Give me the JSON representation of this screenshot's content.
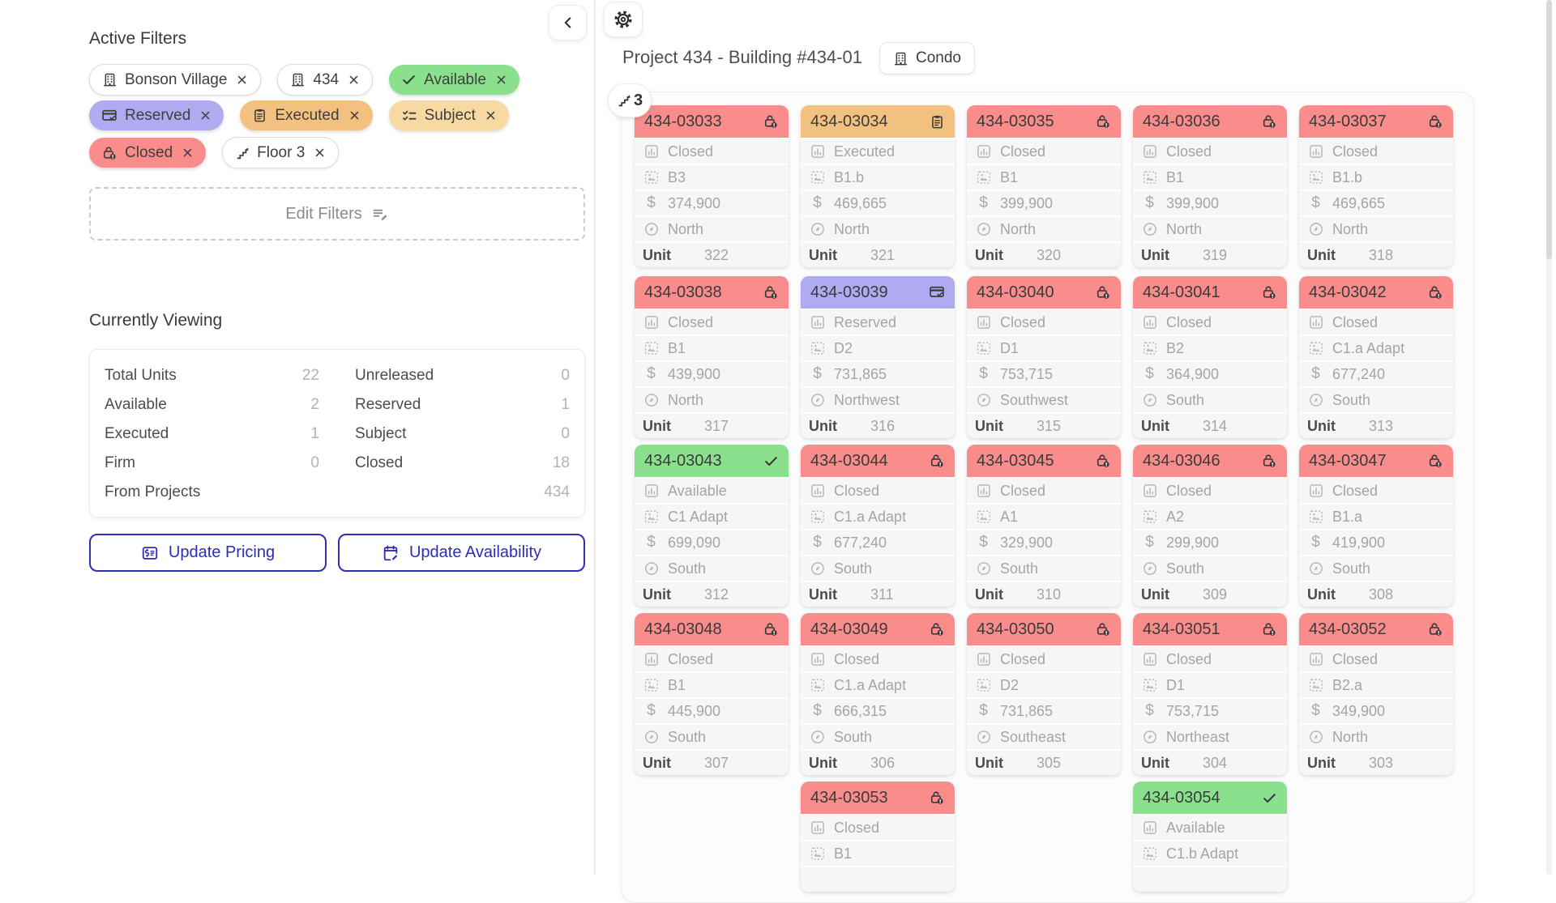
{
  "colors": {
    "closed": "#FA8C8C",
    "executed": "#F3C17F",
    "reserved": "#B0ABF0",
    "available": "#8BE08E",
    "subject": "#F8D9A1",
    "accent": "#2D2DB5"
  },
  "sidebar": {
    "active_filters_title": "Active Filters",
    "filters": [
      {
        "label": "Bonson Village",
        "icon": "building",
        "style": "white",
        "row": 1
      },
      {
        "label": "434",
        "icon": "building",
        "style": "white",
        "row": 1
      },
      {
        "label": "Available",
        "icon": "check",
        "style": "green",
        "row": 1
      },
      {
        "label": "Reserved",
        "icon": "credit-card",
        "style": "purple",
        "row": 2
      },
      {
        "label": "Executed",
        "icon": "clipboard",
        "style": "orange",
        "row": 2
      },
      {
        "label": "Subject",
        "icon": "checklist",
        "style": "yellow",
        "row": 2
      },
      {
        "label": "Closed",
        "icon": "lock",
        "style": "red",
        "row": 3
      },
      {
        "label": "Floor 3",
        "icon": "stairs",
        "style": "white",
        "row": 3
      }
    ],
    "edit_filters_label": "Edit Filters",
    "currently_viewing_title": "Currently Viewing",
    "stats_rows": [
      {
        "left_label": "Total Units",
        "left_value": "22",
        "right_label": "Unreleased",
        "right_value": "0"
      },
      {
        "left_label": "Available",
        "left_value": "2",
        "right_label": "Reserved",
        "right_value": "1"
      },
      {
        "left_label": "Executed",
        "left_value": "1",
        "right_label": "Subject",
        "right_value": "0"
      },
      {
        "left_label": "Firm",
        "left_value": "0",
        "right_label": "Closed",
        "right_value": "18"
      }
    ],
    "stats_footer": {
      "label": "From Projects",
      "value": "434"
    },
    "update_pricing_label": "Update Pricing",
    "update_availability_label": "Update Availability"
  },
  "header": {
    "title": "Project 434 - Building #434-01",
    "badge_label": "Condo",
    "floor_indicator": "3"
  },
  "unit_row_labels": {
    "unit": "Unit"
  },
  "units": [
    {
      "id": "434-03033",
      "status": "closed",
      "status_label": "Closed",
      "model": "B3",
      "price": "374,900",
      "orientation": "North",
      "unit": "322",
      "col": 1,
      "row": 1
    },
    {
      "id": "434-03034",
      "status": "executed",
      "status_label": "Executed",
      "model": "B1.b",
      "price": "469,665",
      "orientation": "North",
      "unit": "321",
      "col": 2,
      "row": 1
    },
    {
      "id": "434-03035",
      "status": "closed",
      "status_label": "Closed",
      "model": "B1",
      "price": "399,900",
      "orientation": "North",
      "unit": "320",
      "col": 3,
      "row": 1
    },
    {
      "id": "434-03036",
      "status": "closed",
      "status_label": "Closed",
      "model": "B1",
      "price": "399,900",
      "orientation": "North",
      "unit": "319",
      "col": 4,
      "row": 1
    },
    {
      "id": "434-03037",
      "status": "closed",
      "status_label": "Closed",
      "model": "B1.b",
      "price": "469,665",
      "orientation": "North",
      "unit": "318",
      "col": 5,
      "row": 1
    },
    {
      "id": "434-03038",
      "status": "closed",
      "status_label": "Closed",
      "model": "B1",
      "price": "439,900",
      "orientation": "North",
      "unit": "317",
      "col": 1,
      "row": 2
    },
    {
      "id": "434-03039",
      "status": "reserved",
      "status_label": "Reserved",
      "model": "D2",
      "price": "731,865",
      "orientation": "Northwest",
      "unit": "316",
      "col": 2,
      "row": 2
    },
    {
      "id": "434-03040",
      "status": "closed",
      "status_label": "Closed",
      "model": "D1",
      "price": "753,715",
      "orientation": "Southwest",
      "unit": "315",
      "col": 3,
      "row": 2
    },
    {
      "id": "434-03041",
      "status": "closed",
      "status_label": "Closed",
      "model": "B2",
      "price": "364,900",
      "orientation": "South",
      "unit": "314",
      "col": 4,
      "row": 2
    },
    {
      "id": "434-03042",
      "status": "closed",
      "status_label": "Closed",
      "model": "C1.a Adapt",
      "price": "677,240",
      "orientation": "South",
      "unit": "313",
      "col": 5,
      "row": 2
    },
    {
      "id": "434-03043",
      "status": "available",
      "status_label": "Available",
      "model": "C1 Adapt",
      "price": "699,090",
      "orientation": "South",
      "unit": "312",
      "col": 1,
      "row": 3
    },
    {
      "id": "434-03044",
      "status": "closed",
      "status_label": "Closed",
      "model": "C1.a Adapt",
      "price": "677,240",
      "orientation": "South",
      "unit": "311",
      "col": 2,
      "row": 3
    },
    {
      "id": "434-03045",
      "status": "closed",
      "status_label": "Closed",
      "model": "A1",
      "price": "329,900",
      "orientation": "South",
      "unit": "310",
      "col": 3,
      "row": 3
    },
    {
      "id": "434-03046",
      "status": "closed",
      "status_label": "Closed",
      "model": "A2",
      "price": "299,900",
      "orientation": "South",
      "unit": "309",
      "col": 4,
      "row": 3
    },
    {
      "id": "434-03047",
      "status": "closed",
      "status_label": "Closed",
      "model": "B1.a",
      "price": "419,900",
      "orientation": "South",
      "unit": "308",
      "col": 5,
      "row": 3
    },
    {
      "id": "434-03048",
      "status": "closed",
      "status_label": "Closed",
      "model": "B1",
      "price": "445,900",
      "orientation": "South",
      "unit": "307",
      "col": 1,
      "row": 4
    },
    {
      "id": "434-03049",
      "status": "closed",
      "status_label": "Closed",
      "model": "C1.a Adapt",
      "price": "666,315",
      "orientation": "South",
      "unit": "306",
      "col": 2,
      "row": 4
    },
    {
      "id": "434-03050",
      "status": "closed",
      "status_label": "Closed",
      "model": "D2",
      "price": "731,865",
      "orientation": "Southeast",
      "unit": "305",
      "col": 3,
      "row": 4
    },
    {
      "id": "434-03051",
      "status": "closed",
      "status_label": "Closed",
      "model": "D1",
      "price": "753,715",
      "orientation": "Northeast",
      "unit": "304",
      "col": 4,
      "row": 4
    },
    {
      "id": "434-03052",
      "status": "closed",
      "status_label": "Closed",
      "model": "B2.a",
      "price": "349,900",
      "orientation": "North",
      "unit": "303",
      "col": 5,
      "row": 4
    },
    {
      "id": "434-03053",
      "status": "closed",
      "status_label": "Closed",
      "model": "B1",
      "col": 2,
      "row": 5,
      "partial": true
    },
    {
      "id": "434-03054",
      "status": "available",
      "status_label": "Available",
      "model": "C1.b Adapt",
      "col": 4,
      "row": 5,
      "partial": true
    }
  ]
}
